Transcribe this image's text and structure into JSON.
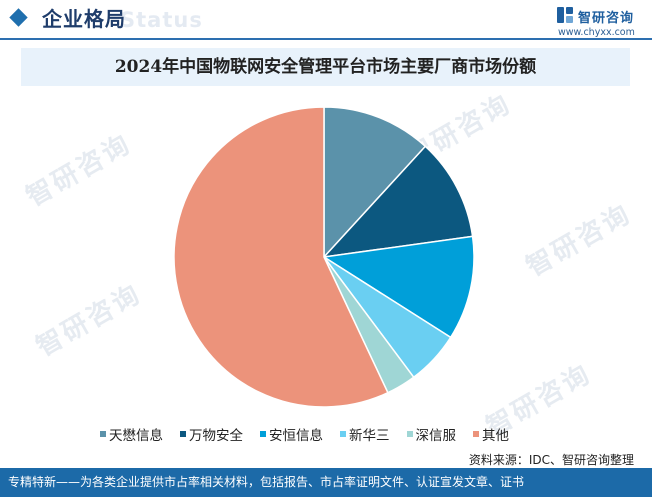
{
  "header": {
    "section_title": "企业格局",
    "ghost_text": "Status"
  },
  "brand": {
    "name": "智研咨询",
    "url": "www.chyxx.com",
    "watermark": "智研咨询"
  },
  "chart_data": {
    "type": "pie",
    "title": "2024年中国物联网安全管理平台市场主要厂商市场份额",
    "start_angle": "12 o'clock",
    "direction": "clockwise",
    "slices": [
      {
        "label": "天懋信息",
        "value": 11.8,
        "color": "#5b92aa"
      },
      {
        "label": "万物安全",
        "value": 11.0,
        "color": "#0c5880"
      },
      {
        "label": "安恒信息",
        "value": 11.2,
        "color": "#009fd9"
      },
      {
        "label": "新华三",
        "value": 5.8,
        "color": "#6acff2"
      },
      {
        "label": "深信服",
        "value": 3.2,
        "color": "#9fd6d5"
      },
      {
        "label": "其他",
        "value": 57.0,
        "color": "#ec937b"
      }
    ],
    "legend_position": "bottom"
  },
  "source_note": "资料来源：IDC、智研咨询整理",
  "footer_text": "专精特新——为各类企业提供市占率相关材料，包括报告、市占率证明文件、认证宣发文章、证书"
}
